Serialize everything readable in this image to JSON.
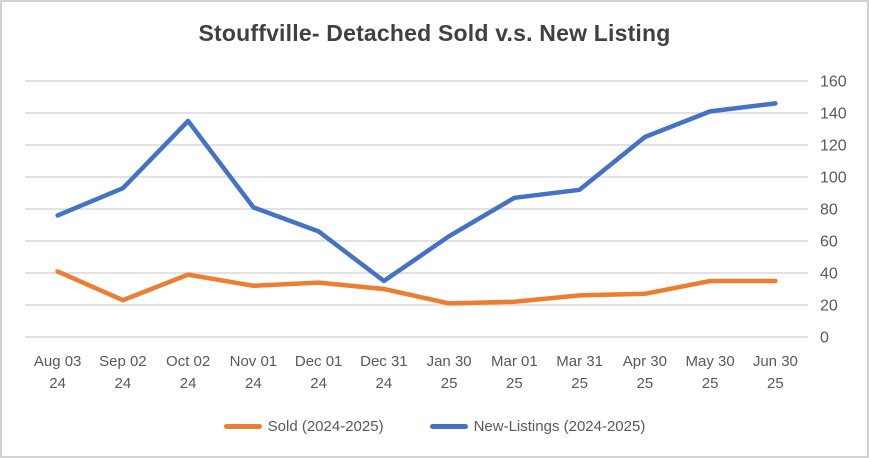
{
  "chart_data": {
    "type": "line",
    "title": "Stouffville- Detached Sold v.s. New Listing",
    "categories": [
      {
        "date": "Aug 03",
        "year": "24"
      },
      {
        "date": "Sep 02",
        "year": "24"
      },
      {
        "date": "Oct 02",
        "year": "24"
      },
      {
        "date": "Nov 01",
        "year": "24"
      },
      {
        "date": "Dec 01",
        "year": "24"
      },
      {
        "date": "Dec 31",
        "year": "24"
      },
      {
        "date": "Jan 30",
        "year": "25"
      },
      {
        "date": "Mar 01",
        "year": "25"
      },
      {
        "date": "Mar 31",
        "year": "25"
      },
      {
        "date": "Apr 30",
        "year": "25"
      },
      {
        "date": "May 30",
        "year": "25"
      },
      {
        "date": "Jun 30",
        "year": "25"
      }
    ],
    "series": [
      {
        "name": "Sold (2024-2025)",
        "color": "#ED7D31",
        "values": [
          41,
          23,
          39,
          32,
          34,
          30,
          21,
          22,
          26,
          27,
          35,
          35
        ]
      },
      {
        "name": "New-Listings (2024-2025)",
        "color": "#4472C4",
        "values": [
          76,
          93,
          135,
          81,
          66,
          35,
          63,
          87,
          92,
          125,
          141,
          146
        ]
      }
    ],
    "y_axis": {
      "min": 0,
      "max": 160,
      "step": 20,
      "ticks": [
        0,
        20,
        40,
        60,
        80,
        100,
        120,
        140,
        160
      ],
      "position": "right"
    },
    "grid": true,
    "legend_position": "bottom"
  },
  "colors": {
    "gridline": "#D9D9D9",
    "axis_text": "#595959",
    "title_text": "#404040",
    "frame_border": "#D2D2D2",
    "background": "#FFFFFF"
  }
}
